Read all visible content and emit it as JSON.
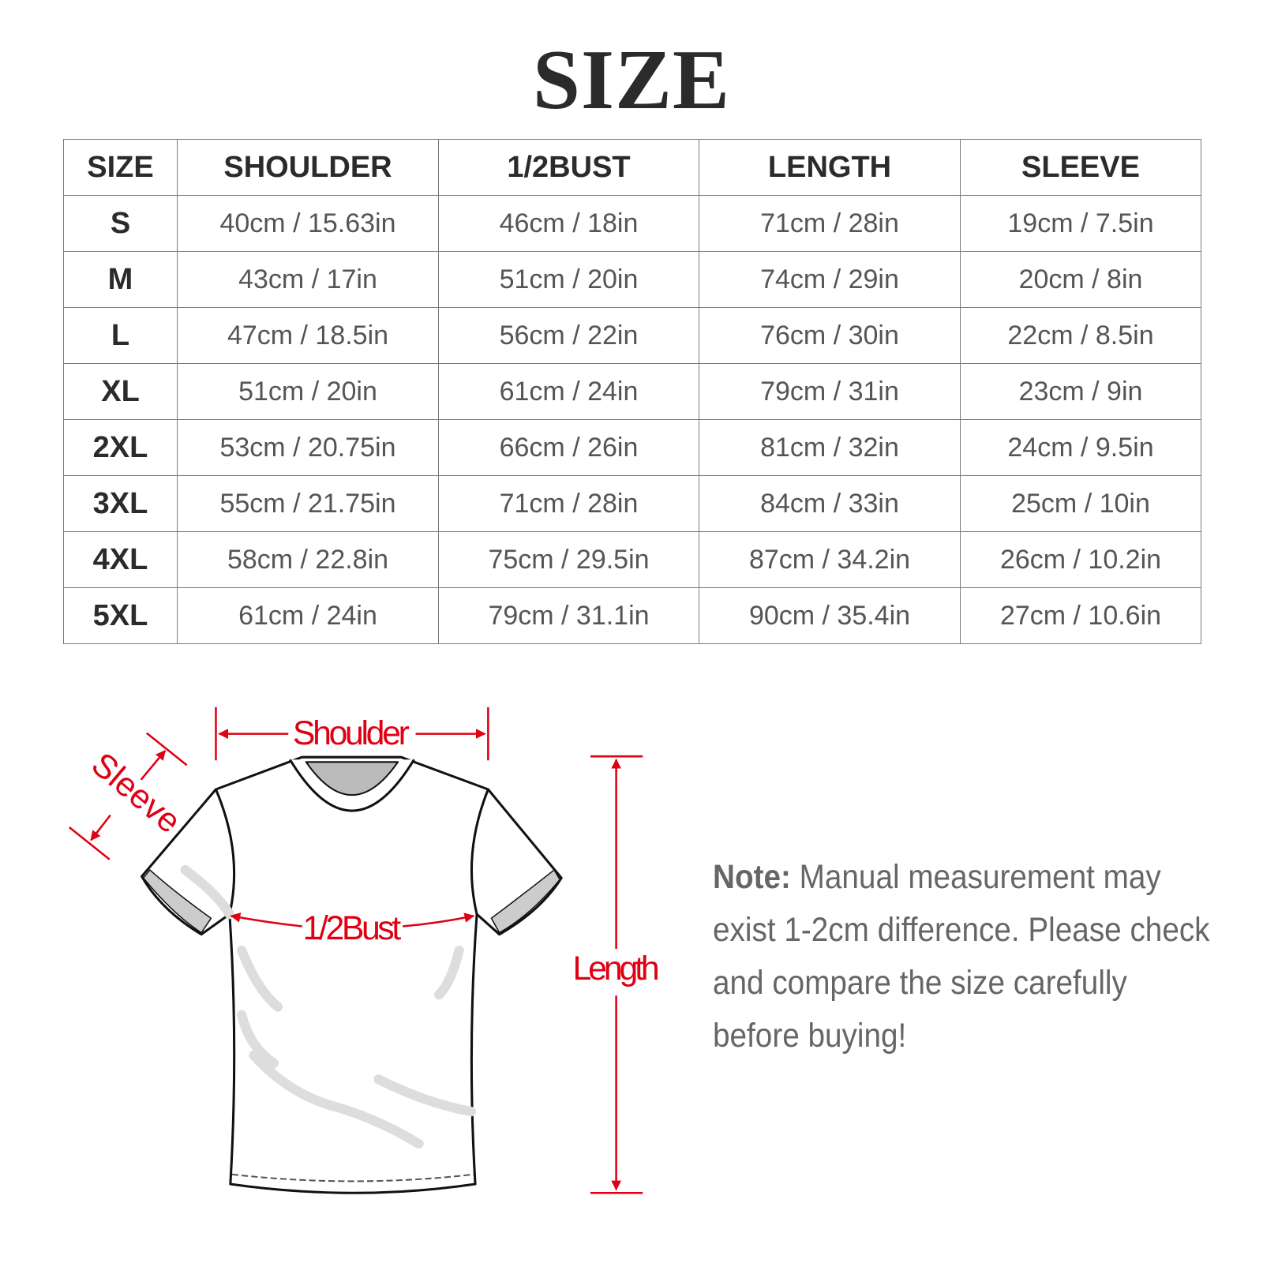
{
  "title": "SIZE",
  "table": {
    "headers": [
      "SIZE",
      "SHOULDER",
      "1/2BUST",
      "LENGTH",
      "SLEEVE"
    ],
    "rows": [
      [
        "S",
        "40cm / 15.63in",
        "46cm / 18in",
        "71cm / 28in",
        "19cm / 7.5in"
      ],
      [
        "M",
        "43cm / 17in",
        "51cm / 20in",
        "74cm / 29in",
        "20cm / 8in"
      ],
      [
        "L",
        "47cm / 18.5in",
        "56cm / 22in",
        "76cm / 30in",
        "22cm / 8.5in"
      ],
      [
        "XL",
        "51cm / 20in",
        "61cm / 24in",
        "79cm / 31in",
        "23cm / 9in"
      ],
      [
        "2XL",
        "53cm / 20.75in",
        "66cm / 26in",
        "81cm / 32in",
        "24cm / 9.5in"
      ],
      [
        "3XL",
        "55cm / 21.75in",
        "71cm / 28in",
        "84cm / 33in",
        "25cm / 10in"
      ],
      [
        "4XL",
        "58cm / 22.8in",
        "75cm / 29.5in",
        "87cm / 34.2in",
        "26cm / 10.2in"
      ],
      [
        "5XL",
        "61cm / 24in",
        "79cm / 31.1in",
        "90cm / 35.4in",
        "27cm / 10.6in"
      ]
    ]
  },
  "diagram": {
    "labels": {
      "shoulder": "Shoulder",
      "sleeve": "Sleeve",
      "bust": "1/2Bust",
      "length": "Length"
    },
    "accent_color": "#e00014"
  },
  "note": {
    "label": "Note:",
    "text": " Manual measurement may exist 1-2cm difference. Please check and compare the size carefully before buying!"
  }
}
